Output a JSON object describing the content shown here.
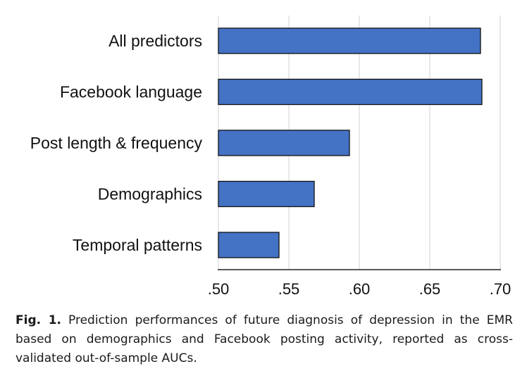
{
  "chart_data": {
    "type": "bar",
    "orientation": "horizontal",
    "categories": [
      "All predictors",
      "Facebook language",
      "Post length & frequency",
      "Demographics",
      "Temporal patterns"
    ],
    "values": [
      0.686,
      0.687,
      0.593,
      0.568,
      0.543
    ],
    "xlim": [
      0.5,
      0.7
    ],
    "xticks": [
      0.5,
      0.55,
      0.6,
      0.65,
      0.7
    ],
    "xtick_labels": [
      ".50",
      ".55",
      ".60",
      ".65",
      ".70"
    ],
    "grid": "vertical",
    "bar_color": "#4472c4",
    "title": "",
    "xlabel": "",
    "ylabel": ""
  },
  "caption": {
    "label": "Fig. 1.",
    "text": "Prediction performances of future diagnosis of depression in the EMR based on demographics and Facebook posting activity, reported as cross-validated out-of-sample AUCs."
  }
}
